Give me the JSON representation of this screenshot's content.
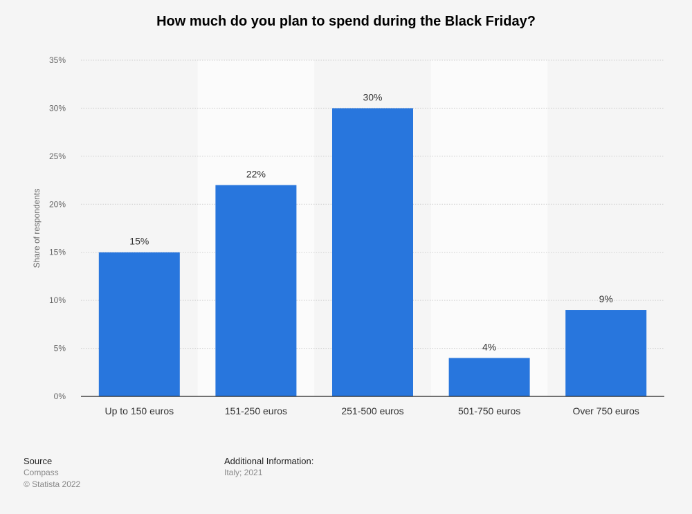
{
  "chart_data": {
    "type": "bar",
    "title": "How much do you plan to spend during the Black Friday?",
    "ylabel": "Share of respondents",
    "xlabel": "",
    "categories": [
      "Up to 150 euros",
      "151-250 euros",
      "251-500 euros",
      "501-750 euros",
      "Over 750 euros"
    ],
    "values": [
      15,
      22,
      30,
      4,
      9
    ],
    "value_labels": [
      "15%",
      "22%",
      "30%",
      "4%",
      "9%"
    ],
    "ylim": [
      0,
      35
    ],
    "yticks": [
      "0%",
      "5%",
      "10%",
      "15%",
      "20%",
      "25%",
      "30%",
      "35%"
    ],
    "grid": true,
    "bar_color": "#2876dd"
  },
  "footer": {
    "source_label": "Source",
    "source": "Compass",
    "copyright": "© Statista 2022",
    "info_label": "Additional Information:",
    "info": "Italy; 2021"
  }
}
